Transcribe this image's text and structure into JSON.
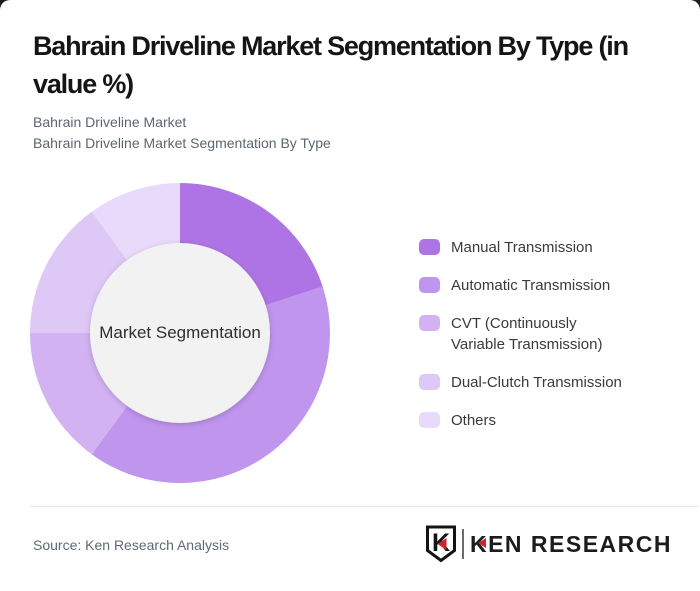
{
  "page": {
    "background": "#1c1c1c",
    "card_background": "#ffffff"
  },
  "header": {
    "title": "Bahrain Driveline Market Segmentation By Type (in value %)",
    "subtitle_line1": "Bahrain Driveline Market",
    "subtitle_line2": "Bahrain Driveline Market Segmentation By Type"
  },
  "chart_data": {
    "type": "pie",
    "variant": "donut",
    "title": "Bahrain Driveline Market Segmentation By Type (in value %)",
    "unit": "value %",
    "center_label": "Market Segmentation",
    "legend_position": "right",
    "start_angle_deg": 0,
    "direction": "clockwise",
    "hole_color": "#f2f2f2",
    "hole_radius_ratio": 0.6,
    "series": [
      {
        "name": "Manual Transmission",
        "value": 20,
        "color": "#ae74e5"
      },
      {
        "name": "Automatic Transmission",
        "value": 40,
        "color": "#bf95ed"
      },
      {
        "name": "CVT (Continuously Variable Transmission)",
        "value": 15,
        "color": "#d2b2f2"
      },
      {
        "name": "Dual-Clutch Transmission",
        "value": 15,
        "color": "#dec8f6"
      },
      {
        "name": "Others",
        "value": 10,
        "color": "#e9d9fa"
      }
    ]
  },
  "footer": {
    "source": "Source: Ken Research Analysis",
    "logo": {
      "shield_letter": "K",
      "brand": "KEN RESEARCH",
      "red": "#c9252c"
    }
  }
}
